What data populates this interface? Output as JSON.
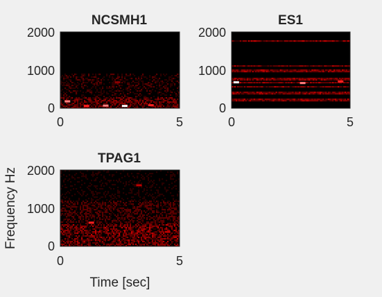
{
  "figure": {
    "background": "#f0f0f0",
    "axis_color": "#262626",
    "colormap": [
      "#000000",
      "#2a0000",
      "#5a0000",
      "#8b0000",
      "#c00000",
      "#ff2020",
      "#ff8080",
      "#ffffff"
    ]
  },
  "chart_data": [
    {
      "type": "heatmap",
      "title": "NCSMH1",
      "xlabel": "",
      "ylabel": "",
      "xlim": [
        0,
        5
      ],
      "ylim": [
        0,
        2000
      ],
      "xticks": [
        "0",
        "5"
      ],
      "yticks": [
        "0",
        "1000",
        "2000"
      ],
      "grid": false,
      "intensity_profile": "low-frequency bursts",
      "highlights": [
        {
          "time": 0.3,
          "freq": 180,
          "level": 0.9
        },
        {
          "time": 1.1,
          "freq": 60,
          "level": 0.85
        },
        {
          "time": 1.9,
          "freq": 70,
          "level": 0.9
        },
        {
          "time": 2.4,
          "freq": 680,
          "level": 0.55
        },
        {
          "time": 2.7,
          "freq": 60,
          "level": 1.0
        },
        {
          "time": 3.8,
          "freq": 80,
          "level": 0.85
        }
      ]
    },
    {
      "type": "heatmap",
      "title": "ES1",
      "xlabel": "",
      "ylabel": "",
      "xlim": [
        0,
        5
      ],
      "ylim": [
        0,
        2000
      ],
      "xticks": [
        "0",
        "5"
      ],
      "yticks": [
        "0",
        "1000",
        "2000"
      ],
      "grid": false,
      "intensity_profile": "harmonic bands",
      "harmonic_bands_hz": [
        220,
        400,
        560,
        680,
        760,
        980,
        1100,
        1750
      ],
      "highlights": [
        {
          "time": 0.2,
          "freq": 680,
          "level": 1.0
        },
        {
          "time": 3.0,
          "freq": 660,
          "level": 0.9
        },
        {
          "time": 4.6,
          "freq": 700,
          "level": 0.8
        }
      ]
    },
    {
      "type": "heatmap",
      "title": "TPAG1",
      "xlabel": "Time [sec]",
      "ylabel": "Frequency Hz",
      "xlim": [
        0,
        5
      ],
      "ylim": [
        0,
        2000
      ],
      "xticks": [
        "0",
        "5"
      ],
      "yticks": [
        "0",
        "1000",
        "2000"
      ],
      "grid": false,
      "intensity_profile": "broadband with mid bands",
      "highlights": [
        {
          "time": 1.3,
          "freq": 620,
          "level": 0.8
        },
        {
          "time": 3.3,
          "freq": 1600,
          "level": 0.6
        },
        {
          "time": 4.5,
          "freq": 380,
          "level": 0.7
        }
      ]
    }
  ]
}
